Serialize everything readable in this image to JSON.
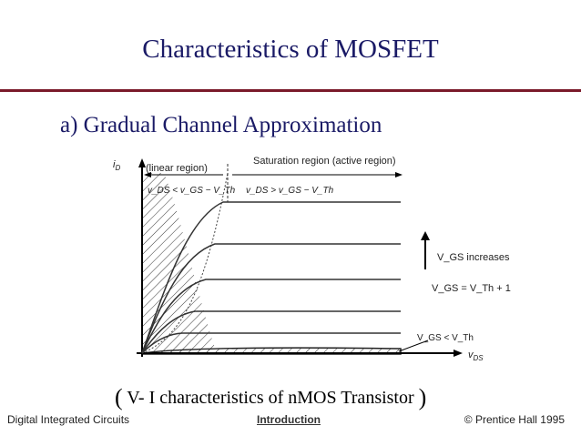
{
  "slide": {
    "title": "Characteristics of MOSFET",
    "subtitle": "a) Gradual Channel Approximation",
    "caption_open": "(",
    "caption_text": " V- I characteristics of nMOS Transistor ",
    "caption_close": ")"
  },
  "figure": {
    "y_axis_label": "i",
    "y_axis_sub": "D",
    "x_axis_label": "v",
    "x_axis_sub": "DS",
    "linear_region_label": "(linear region)",
    "saturation_label": "Saturation region (active region)",
    "linear_cond": "v_DS < v_GS − V_Th",
    "sat_cond": "v_DS > v_GS − V_Th",
    "vgs_increases": "V_GS increases",
    "vgs_eq": "V_GS = V_Th + 1",
    "vgs_lt": "V_GS < V_Th"
  },
  "footer": {
    "left": "Digital Integrated Circuits",
    "center": "Introduction",
    "right": "© Prentice Hall 1995"
  }
}
